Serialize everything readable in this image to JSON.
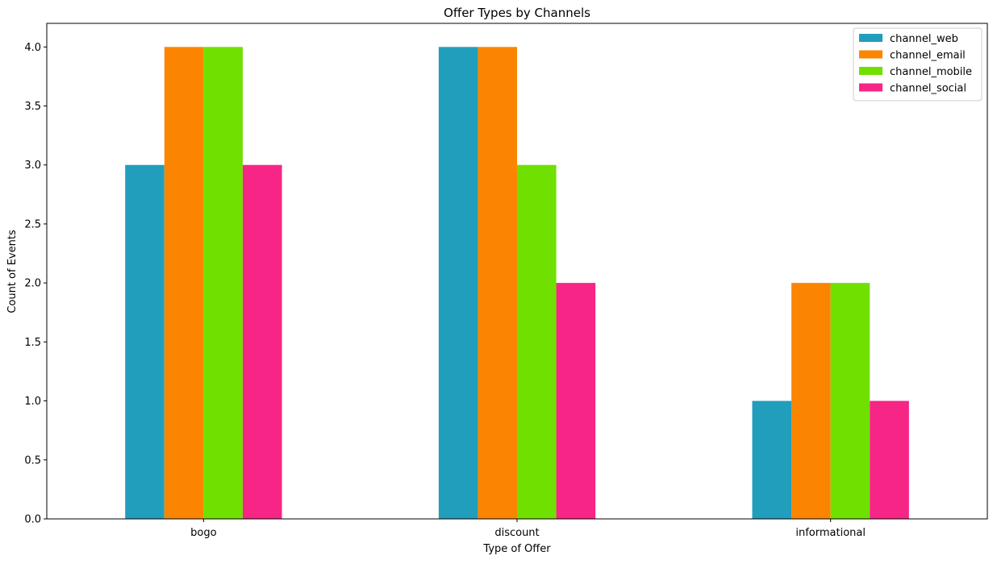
{
  "chart_data": {
    "type": "bar",
    "title": "Offer Types by Channels",
    "xlabel": "Type of Offer",
    "ylabel": "Count of Events",
    "categories": [
      "bogo",
      "discount",
      "informational"
    ],
    "series": [
      {
        "name": "channel_web",
        "color": "#219ebc",
        "values": [
          3,
          4,
          1
        ]
      },
      {
        "name": "channel_email",
        "color": "#fb8500",
        "values": [
          4,
          4,
          2
        ]
      },
      {
        "name": "channel_mobile",
        "color": "#70e000",
        "values": [
          4,
          3,
          2
        ]
      },
      {
        "name": "channel_social",
        "color": "#f72585",
        "values": [
          3,
          2,
          1
        ]
      }
    ],
    "ylim": [
      0,
      4.2
    ],
    "yticks": [
      "0.0",
      "0.5",
      "1.0",
      "1.5",
      "2.0",
      "2.5",
      "3.0",
      "3.5",
      "4.0"
    ],
    "grid": false,
    "legend_position": "top-right"
  }
}
